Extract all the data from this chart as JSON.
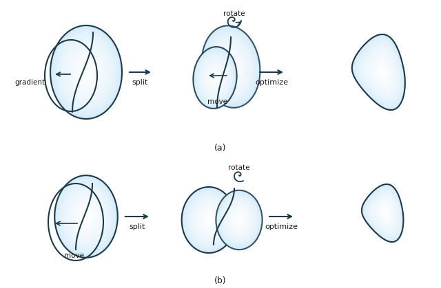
{
  "bg_color": "#ffffff",
  "ellipse_fill_light": "#a8d8f0",
  "ellipse_fill_mid": "#7bc4e8",
  "ellipse_stroke": "#1a3a4a",
  "arrow_color": "#1a3a4a",
  "text_color": "#1a1a1a",
  "label_a": "(a)",
  "label_b": "(b)",
  "split_text": "split",
  "optimize_text": "optimize",
  "gradient_text": "gradient",
  "move_text_a": "move",
  "move_text_b": "move",
  "rotate_text_a": "rotate",
  "rotate_text_b": "rotate"
}
